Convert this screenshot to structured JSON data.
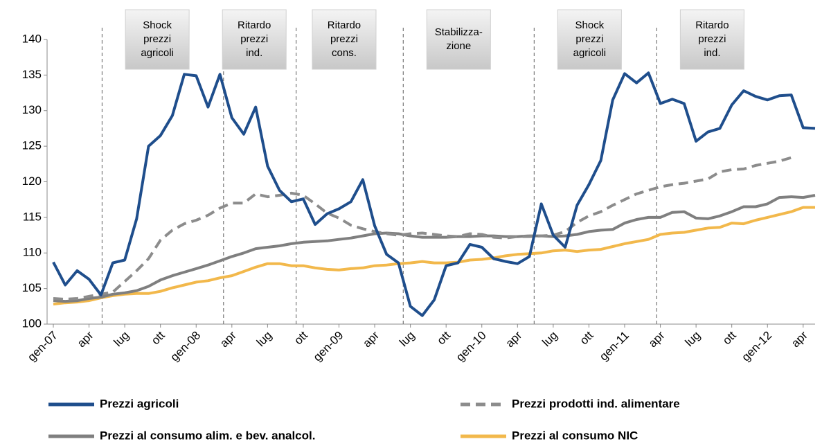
{
  "chart_data": {
    "type": "line",
    "categories": [
      "gen-07",
      null,
      null,
      "apr",
      null,
      null,
      "lug",
      null,
      null,
      "ott",
      null,
      null,
      "gen-08",
      null,
      null,
      "apr",
      null,
      null,
      "lug",
      null,
      null,
      "ott",
      null,
      null,
      "gen-09",
      null,
      null,
      "apr",
      null,
      null,
      "lug",
      null,
      null,
      "ott",
      null,
      null,
      "gen-10",
      null,
      null,
      "apr",
      null,
      null,
      "lug",
      null,
      null,
      "ott",
      null,
      null,
      "gen-11",
      null,
      null,
      "apr",
      null,
      null,
      "lug",
      null,
      null,
      "ott",
      null,
      null,
      "gen-12",
      null,
      null,
      "apr",
      null
    ],
    "ylim": [
      100,
      140
    ],
    "yticks": [
      100,
      105,
      110,
      115,
      120,
      125,
      130,
      135,
      140
    ],
    "series": [
      {
        "name": "Prezzi agricoli",
        "color": "#1f4e8c",
        "dashed": false,
        "values": [
          108.7,
          105.5,
          107.5,
          106.3,
          104.1,
          108.6,
          109,
          114.8,
          125,
          126.5,
          129.3,
          135.1,
          134.9,
          130.5,
          135.1,
          129,
          126.7,
          130.5,
          122.2,
          118.8,
          117.2,
          117.6,
          114,
          115.5,
          116.2,
          117.2,
          120.3,
          113.8,
          109.8,
          108.6,
          102.5,
          101.2,
          103.4,
          108.2,
          108.6,
          111.2,
          110.8,
          109.2,
          108.8,
          108.5,
          109.5,
          116.9,
          112.5,
          110.8,
          116.7,
          119.6,
          123,
          131.5,
          135.2,
          133.9,
          135.3,
          131,
          131.6,
          131,
          125.7,
          127,
          127.5,
          130.8,
          132.8,
          132,
          131.5,
          132.1,
          132.2,
          127.6,
          127.5
        ]
      },
      {
        "name": "Prezzi prodotti ind. alimentare",
        "color": "#8c8c8c",
        "dashed": true,
        "values": [
          103.6,
          103.5,
          103.6,
          103.9,
          104.2,
          104.5,
          106,
          107.5,
          109.2,
          111.8,
          113.2,
          114.1,
          114.6,
          115.3,
          116.3,
          117,
          117,
          118.3,
          117.9,
          118.1,
          118.4,
          118.1,
          116.9,
          115.6,
          114.9,
          113.9,
          113.4,
          113,
          112.7,
          112.5,
          112.7,
          112.8,
          112.6,
          112.4,
          112.3,
          112.7,
          112.6,
          112.2,
          112.1,
          112.3,
          112.3,
          112.4,
          112.5,
          113,
          114.3,
          115.2,
          115.8,
          116.7,
          117.5,
          118.3,
          118.8,
          119.3,
          119.6,
          119.8,
          120.1,
          120.4,
          121.4,
          121.7,
          121.8,
          122.3,
          122.6,
          122.9,
          123.4,
          null,
          null
        ]
      },
      {
        "name": "Prezzi al consumo alim. e bev. analcol.",
        "color": "#7f7f7f",
        "dashed": false,
        "values": [
          103.3,
          103.2,
          103.3,
          103.6,
          103.8,
          104.2,
          104.4,
          104.7,
          105.3,
          106.2,
          106.8,
          107.3,
          107.8,
          108.3,
          108.9,
          109.5,
          110,
          110.6,
          110.8,
          111,
          111.3,
          111.5,
          111.6,
          111.7,
          111.9,
          112.1,
          112.4,
          112.7,
          112.8,
          112.7,
          112.4,
          112.2,
          112.2,
          112.2,
          112.3,
          112.3,
          112.4,
          112.4,
          112.3,
          112.3,
          112.4,
          112.4,
          112.3,
          112.4,
          112.6,
          113,
          113.2,
          113.3,
          114.2,
          114.7,
          115,
          115,
          115.7,
          115.8,
          114.9,
          114.8,
          115.2,
          115.8,
          116.5,
          116.5,
          116.9,
          117.8,
          117.9,
          117.8,
          118.1
        ]
      },
      {
        "name": "Prezzi al consumo NIC",
        "color": "#f2b84b",
        "dashed": false,
        "values": [
          102.8,
          103,
          103.1,
          103.3,
          103.7,
          104,
          104.2,
          104.3,
          104.3,
          104.6,
          105.1,
          105.5,
          105.9,
          106.1,
          106.5,
          106.8,
          107.4,
          108,
          108.5,
          108.5,
          108.2,
          108.2,
          107.9,
          107.7,
          107.6,
          107.8,
          107.9,
          108.2,
          108.3,
          108.5,
          108.6,
          108.8,
          108.6,
          108.6,
          108.7,
          109,
          109.1,
          109.3,
          109.6,
          109.8,
          109.9,
          110,
          110.3,
          110.4,
          110.2,
          110.4,
          110.5,
          110.9,
          111.3,
          111.6,
          111.9,
          112.6,
          112.8,
          112.9,
          113.2,
          113.5,
          113.6,
          114.2,
          114.1,
          114.6,
          115,
          115.4,
          115.8,
          116.4,
          116.4
        ]
      }
    ],
    "annotations": [
      {
        "x": 4.1,
        "label": [
          "Shock",
          "prezzi",
          "agricoli"
        ]
      },
      {
        "x": 14.3,
        "label": [
          "Ritardo",
          "prezzi",
          "ind."
        ]
      },
      {
        "x": 20.4,
        "label": [
          "Ritardo",
          "prezzi",
          "cons."
        ]
      },
      {
        "x": 29.4,
        "label": [
          "Stabilizza-",
          "zione"
        ]
      },
      {
        "x": 40.4,
        "label": [
          "Shock",
          "prezzi",
          "agricoli"
        ]
      },
      {
        "x": 50.7,
        "label": [
          "Ritardo",
          "prezzi",
          "ind."
        ]
      }
    ]
  }
}
